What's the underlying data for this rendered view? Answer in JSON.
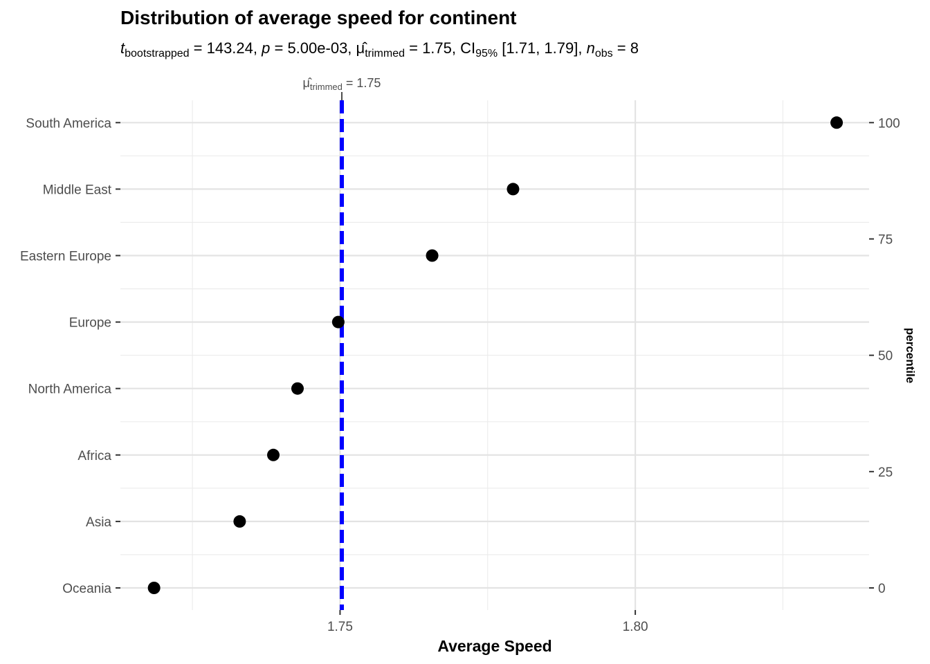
{
  "chart_data": {
    "type": "scatter",
    "title": "Distribution of average speed for continent",
    "subtitle": {
      "t_symbol": "t",
      "t_sub": "bootstrapped",
      "t_value": " = 143.24, ",
      "p_symbol": "p",
      "p_value": " = 5.00e-03, ",
      "mu_symbol": "μ̂",
      "mu_sub": "trimmed",
      "mu_value": " = 1.75, CI",
      "ci_sub": "95%",
      "ci_value": " [1.71, 1.79], ",
      "n_symbol": "n",
      "n_sub": "obs",
      "n_value": " = 8"
    },
    "annotation": {
      "mu_symbol": "μ̂",
      "mu_sub": "trimmed",
      "mu_value": " = 1.75",
      "line_value": 1.7503,
      "line_color": "#0000ff"
    },
    "xlabel": "Average Speed",
    "ylabel_right": "percentile",
    "xlim": [
      1.7128,
      1.8396
    ],
    "x_ticks": [
      1.75,
      1.8
    ],
    "x_tick_labels": [
      "1.75",
      "1.80"
    ],
    "x_minor_ticks": [
      1.725,
      1.775,
      1.825
    ],
    "categories": [
      "Oceania",
      "Asia",
      "Africa",
      "North America",
      "Europe",
      "Eastern Europe",
      "Middle East",
      "South America"
    ],
    "values": [
      1.7185,
      1.733,
      1.7387,
      1.7428,
      1.7497,
      1.7656,
      1.7793,
      1.8341
    ],
    "right_ticks": [
      0,
      25,
      50,
      75,
      100
    ],
    "right_tick_labels": [
      "0",
      "25",
      "50",
      "75",
      "100"
    ],
    "grid": true,
    "point_color": "#000000"
  }
}
